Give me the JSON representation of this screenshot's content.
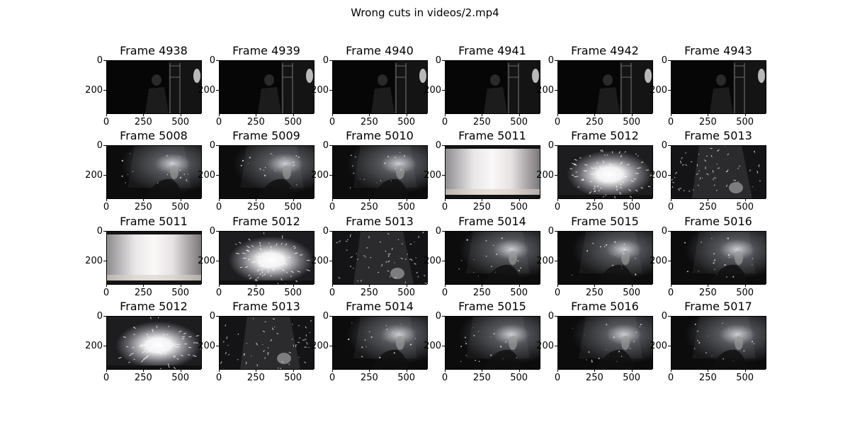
{
  "title": "Wrong cuts in videos/2.mp4",
  "x_ticks": [
    "0",
    "250",
    "500"
  ],
  "y_ticks": [
    "0",
    "200"
  ],
  "chart_data": {
    "type": "image-grid",
    "title": "Wrong cuts in videos/2.mp4",
    "rows": 4,
    "cols": 6,
    "xlim": [
      0,
      640
    ],
    "ylim": [
      360,
      0
    ],
    "x_ticks": [
      0,
      250,
      500
    ],
    "y_ticks": [
      0,
      200
    ],
    "panels": [
      {
        "title": "Frame 4938",
        "scene": "dark"
      },
      {
        "title": "Frame 4939",
        "scene": "dark"
      },
      {
        "title": "Frame 4940",
        "scene": "dark"
      },
      {
        "title": "Frame 4941",
        "scene": "dark"
      },
      {
        "title": "Frame 4942",
        "scene": "dark"
      },
      {
        "title": "Frame 4943",
        "scene": "dark"
      },
      {
        "title": "Frame 5008",
        "scene": "glow"
      },
      {
        "title": "Frame 5009",
        "scene": "glow"
      },
      {
        "title": "Frame 5010",
        "scene": "glow"
      },
      {
        "title": "Frame 5011",
        "scene": "flash"
      },
      {
        "title": "Frame 5012",
        "scene": "burst"
      },
      {
        "title": "Frame 5013",
        "scene": "sparks"
      },
      {
        "title": "Frame 5011",
        "scene": "flash"
      },
      {
        "title": "Frame 5012",
        "scene": "burst"
      },
      {
        "title": "Frame 5013",
        "scene": "sparks"
      },
      {
        "title": "Frame 5014",
        "scene": "glow"
      },
      {
        "title": "Frame 5015",
        "scene": "glow"
      },
      {
        "title": "Frame 5016",
        "scene": "glow"
      },
      {
        "title": "Frame 5012",
        "scene": "burst"
      },
      {
        "title": "Frame 5013",
        "scene": "sparks"
      },
      {
        "title": "Frame 5014",
        "scene": "glow"
      },
      {
        "title": "Frame 5015",
        "scene": "glow"
      },
      {
        "title": "Frame 5016",
        "scene": "glow"
      },
      {
        "title": "Frame 5017",
        "scene": "glow"
      }
    ]
  }
}
